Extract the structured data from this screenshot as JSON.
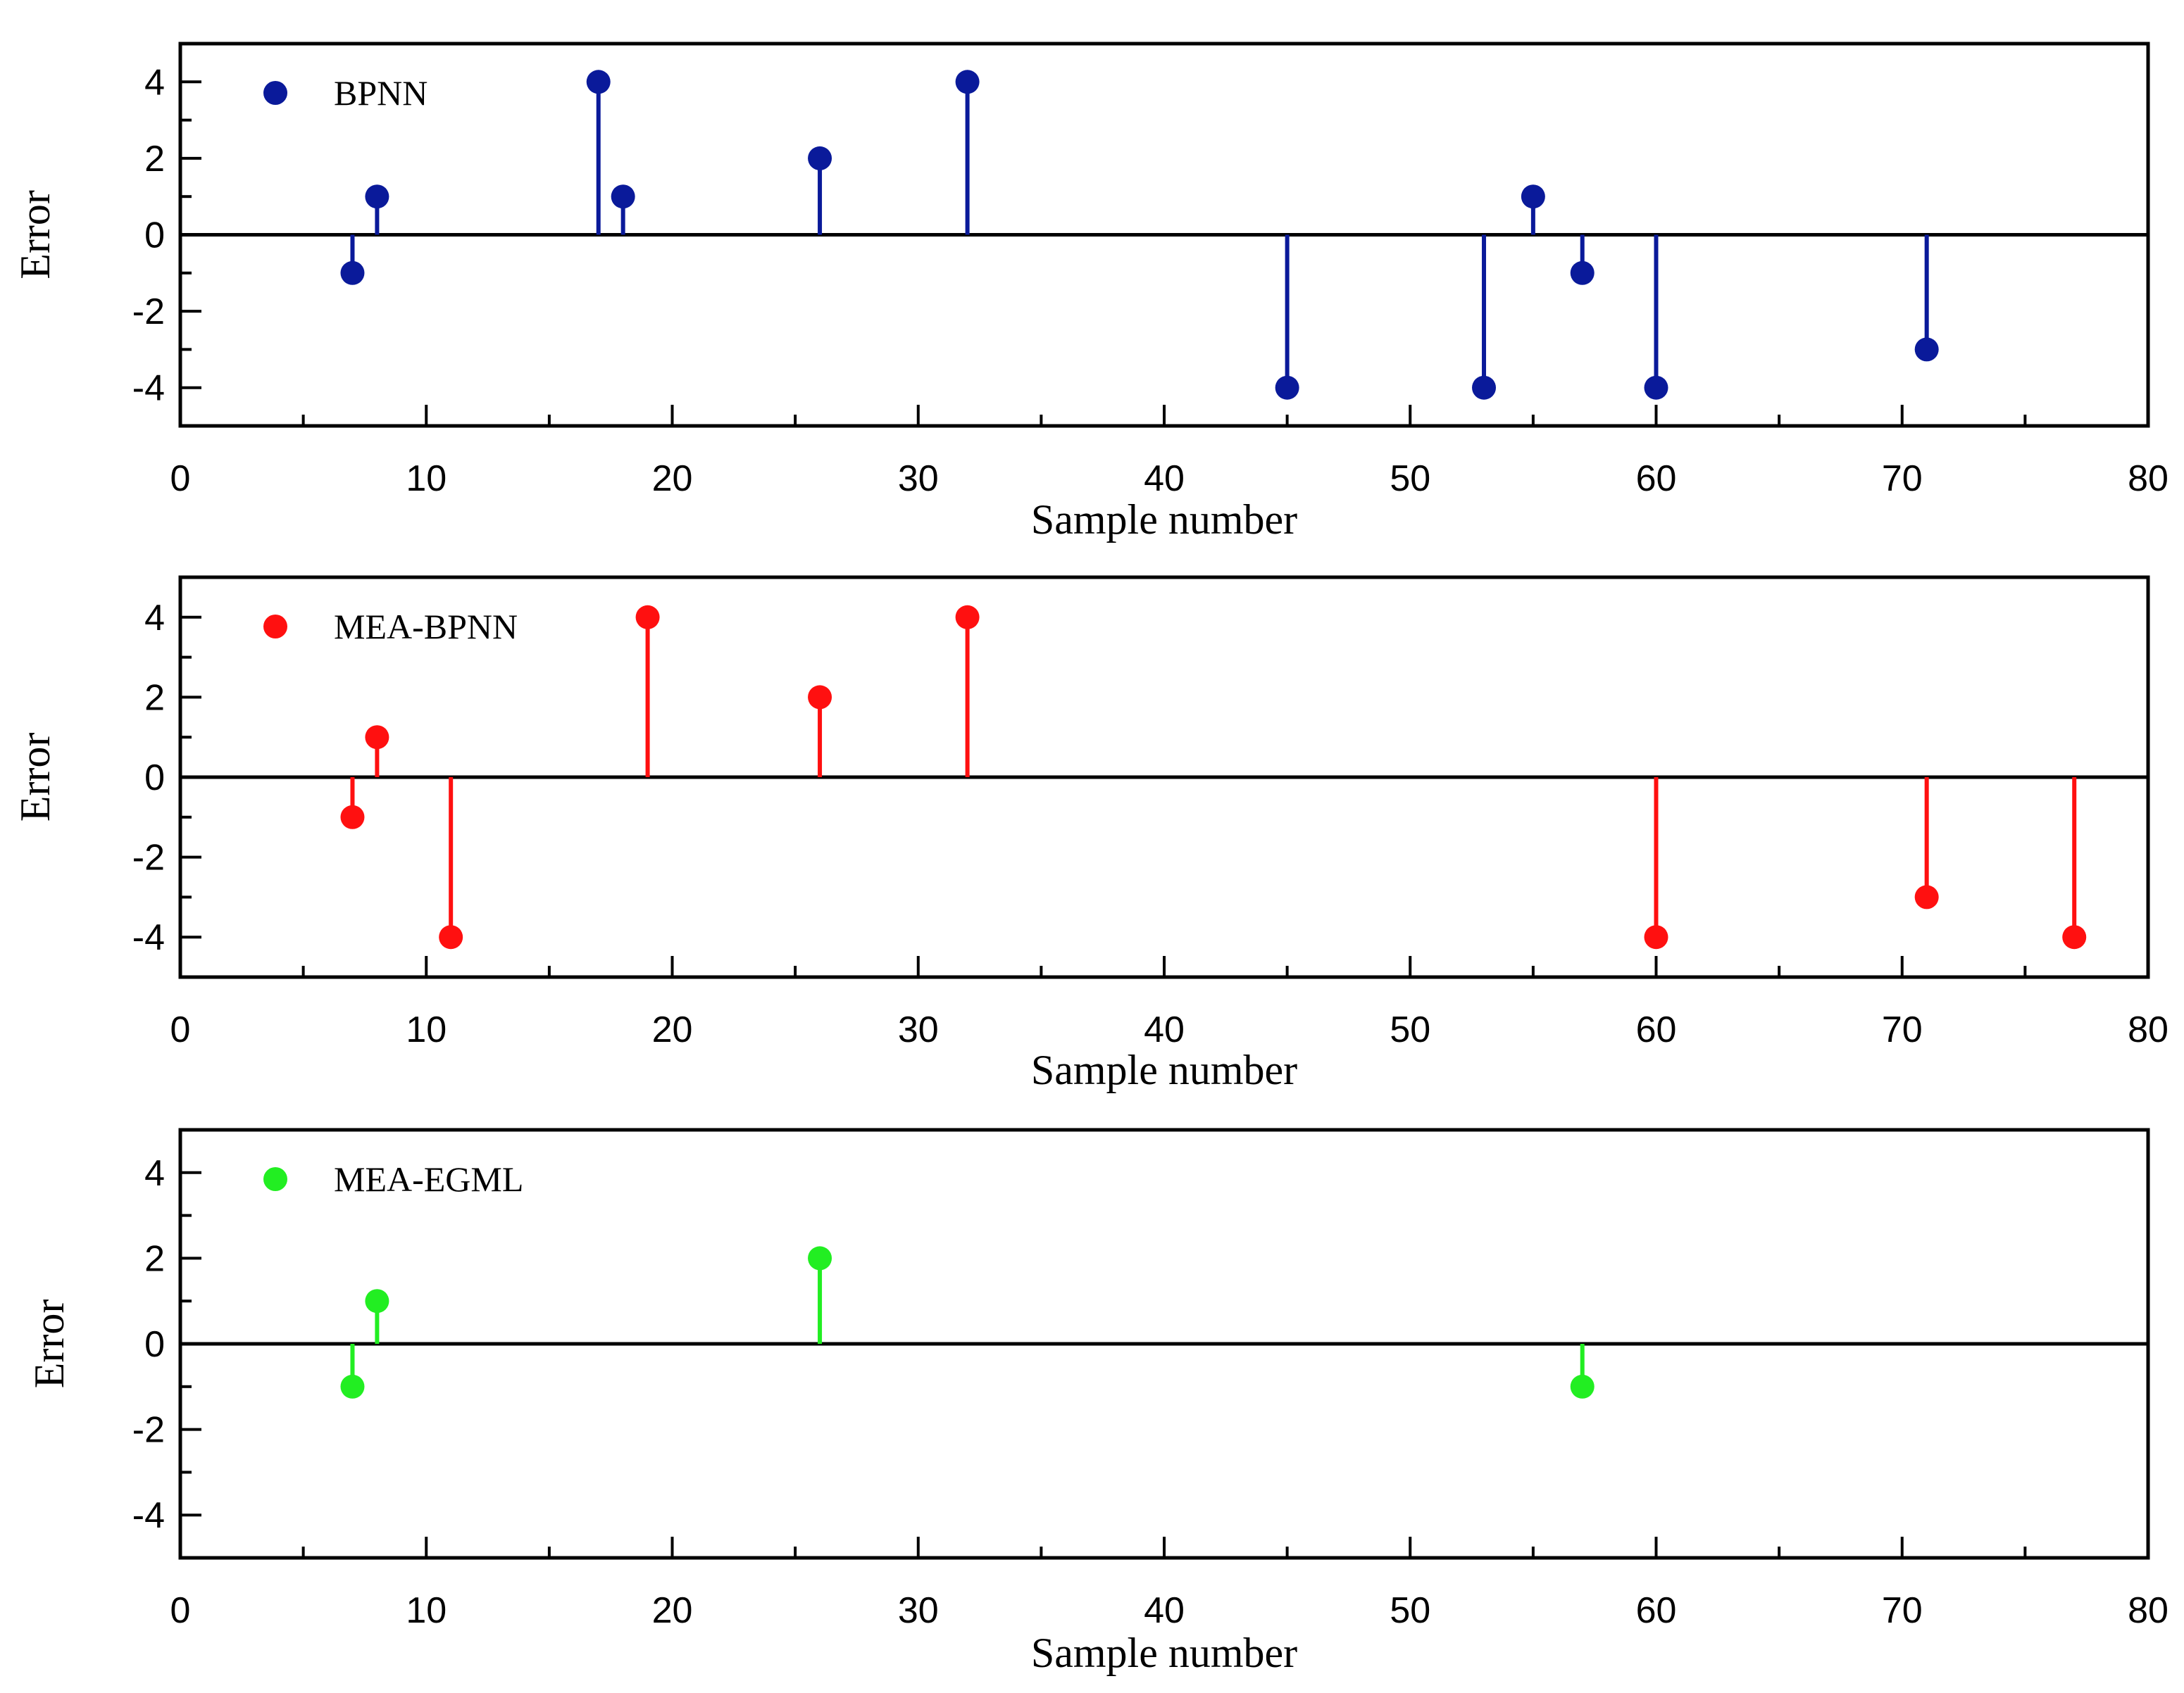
{
  "chart_data": [
    {
      "type": "stem",
      "legend": "BPNN",
      "color": "#0a1a9a",
      "x": [
        7,
        8,
        17,
        18,
        26,
        32,
        45,
        53,
        55,
        57,
        60,
        71
      ],
      "y": [
        -1,
        1,
        4,
        1,
        2,
        4,
        -4,
        -4,
        1,
        -1,
        -4,
        -3
      ],
      "xlabel": "Sample number",
      "ylabel": "Error",
      "xlim": [
        0,
        80
      ],
      "ylim": [
        -5,
        5
      ],
      "xticks": [
        "0",
        "10",
        "20",
        "30",
        "40",
        "50",
        "60",
        "70",
        "80"
      ],
      "yticks": [
        "4",
        "2",
        "0",
        "-2",
        "-4"
      ]
    },
    {
      "type": "stem",
      "legend": "MEA-BPNN",
      "color": "#ff1010",
      "x": [
        7,
        8,
        11,
        19,
        26,
        32,
        60,
        71,
        77
      ],
      "y": [
        -1,
        1,
        -4,
        4,
        2,
        4,
        -4,
        -3,
        -4
      ],
      "xlabel": "Sample number",
      "ylabel": "Error",
      "xlim": [
        0,
        80
      ],
      "ylim": [
        -5,
        5
      ],
      "xticks": [
        "0",
        "10",
        "20",
        "30",
        "40",
        "50",
        "60",
        "70",
        "80"
      ],
      "yticks": [
        "4",
        "2",
        "0",
        "-2",
        "-4"
      ]
    },
    {
      "type": "stem",
      "legend": "MEA-EGML",
      "color": "#22ee22",
      "x": [
        7,
        8,
        26,
        57
      ],
      "y": [
        -1,
        1,
        2,
        -1
      ],
      "xlabel": "Sample number",
      "ylabel": "Error",
      "xlim": [
        0,
        80
      ],
      "ylim": [
        -5,
        5
      ],
      "xticks": [
        "0",
        "10",
        "20",
        "30",
        "40",
        "50",
        "60",
        "70",
        "80"
      ],
      "yticks": [
        "4",
        "2",
        "0",
        "-2",
        "-4"
      ]
    }
  ]
}
